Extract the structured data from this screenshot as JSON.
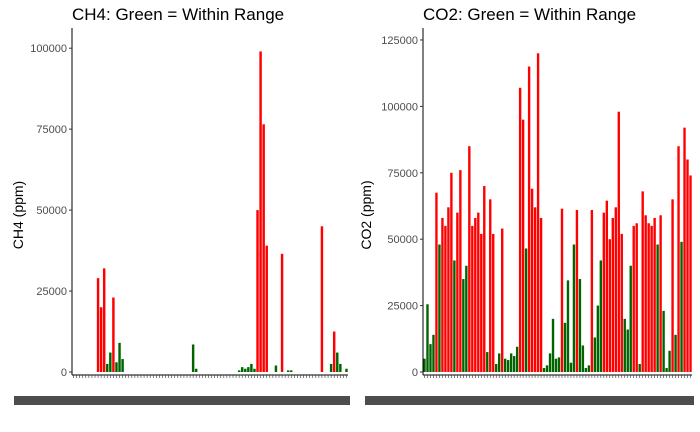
{
  "chart_data": [
    {
      "type": "bar",
      "title": "CH4: Green = Within Range",
      "xlabel": "",
      "ylabel": "CH4 (ppm)",
      "ylim": [
        0,
        105000
      ],
      "yticks": [
        0,
        25000,
        50000,
        75000,
        100000
      ],
      "grid": false,
      "colors": {
        "within_range": "#006400",
        "out_of_range": "#ff0000"
      },
      "categories_count": 90,
      "bars": [
        {
          "index": 8,
          "value": 29000,
          "within_range": false
        },
        {
          "index": 9,
          "value": 20000,
          "within_range": false
        },
        {
          "index": 10,
          "value": 32000,
          "within_range": false
        },
        {
          "index": 11,
          "value": 2500,
          "within_range": true
        },
        {
          "index": 12,
          "value": 6000,
          "within_range": true
        },
        {
          "index": 13,
          "value": 23000,
          "within_range": false
        },
        {
          "index": 14,
          "value": 3000,
          "within_range": true
        },
        {
          "index": 15,
          "value": 9000,
          "within_range": true
        },
        {
          "index": 16,
          "value": 4000,
          "within_range": true
        },
        {
          "index": 39,
          "value": 8500,
          "within_range": true
        },
        {
          "index": 40,
          "value": 1000,
          "within_range": true
        },
        {
          "index": 54,
          "value": 500,
          "within_range": true
        },
        {
          "index": 55,
          "value": 1500,
          "within_range": true
        },
        {
          "index": 56,
          "value": 1000,
          "within_range": true
        },
        {
          "index": 57,
          "value": 1500,
          "within_range": true
        },
        {
          "index": 58,
          "value": 2500,
          "within_range": true
        },
        {
          "index": 59,
          "value": 1000,
          "within_range": true
        },
        {
          "index": 60,
          "value": 50000,
          "within_range": false
        },
        {
          "index": 61,
          "value": 99000,
          "within_range": false
        },
        {
          "index": 62,
          "value": 76500,
          "within_range": false
        },
        {
          "index": 63,
          "value": 39000,
          "within_range": false
        },
        {
          "index": 66,
          "value": 2000,
          "within_range": true
        },
        {
          "index": 68,
          "value": 36500,
          "within_range": false
        },
        {
          "index": 70,
          "value": 500,
          "within_range": true
        },
        {
          "index": 71,
          "value": 500,
          "within_range": true
        },
        {
          "index": 81,
          "value": 45000,
          "within_range": false
        },
        {
          "index": 84,
          "value": 2500,
          "within_range": true
        },
        {
          "index": 85,
          "value": 12500,
          "within_range": false
        },
        {
          "index": 86,
          "value": 6000,
          "within_range": true
        },
        {
          "index": 87,
          "value": 2500,
          "within_range": true
        },
        {
          "index": 89,
          "value": 1000,
          "within_range": true
        }
      ]
    },
    {
      "type": "bar",
      "title": "CO2: Green = Within Range",
      "xlabel": "",
      "ylabel": "CO2 (ppm)",
      "ylim": [
        0,
        128000
      ],
      "yticks": [
        0,
        25000,
        50000,
        75000,
        100000,
        125000
      ],
      "grid": false,
      "colors": {
        "within_range": "#006400",
        "out_of_range": "#ff0000"
      },
      "categories_count": 90,
      "bars": [
        {
          "index": 0,
          "value": 5000,
          "within_range": true
        },
        {
          "index": 1,
          "value": 25500,
          "within_range": true
        },
        {
          "index": 2,
          "value": 10500,
          "within_range": true
        },
        {
          "index": 3,
          "value": 14000,
          "within_range": true
        },
        {
          "index": 4,
          "value": 67500,
          "within_range": false
        },
        {
          "index": 5,
          "value": 48000,
          "within_range": true
        },
        {
          "index": 6,
          "value": 58000,
          "within_range": false
        },
        {
          "index": 7,
          "value": 55000,
          "within_range": false
        },
        {
          "index": 8,
          "value": 62000,
          "within_range": false
        },
        {
          "index": 9,
          "value": 75000,
          "within_range": false
        },
        {
          "index": 10,
          "value": 42000,
          "within_range": true
        },
        {
          "index": 11,
          "value": 60000,
          "within_range": false
        },
        {
          "index": 12,
          "value": 76000,
          "within_range": false
        },
        {
          "index": 13,
          "value": 35000,
          "within_range": true
        },
        {
          "index": 14,
          "value": 40000,
          "within_range": true
        },
        {
          "index": 15,
          "value": 85000,
          "within_range": false
        },
        {
          "index": 16,
          "value": 55000,
          "within_range": false
        },
        {
          "index": 17,
          "value": 58000,
          "within_range": false
        },
        {
          "index": 18,
          "value": 60000,
          "within_range": false
        },
        {
          "index": 19,
          "value": 52000,
          "within_range": false
        },
        {
          "index": 20,
          "value": 70000,
          "within_range": false
        },
        {
          "index": 21,
          "value": 7500,
          "within_range": true
        },
        {
          "index": 22,
          "value": 65000,
          "within_range": false
        },
        {
          "index": 23,
          "value": 52000,
          "within_range": false
        },
        {
          "index": 24,
          "value": 3000,
          "within_range": true
        },
        {
          "index": 25,
          "value": 7000,
          "within_range": true
        },
        {
          "index": 26,
          "value": 54000,
          "within_range": false
        },
        {
          "index": 27,
          "value": 5000,
          "within_range": true
        },
        {
          "index": 28,
          "value": 4500,
          "within_range": true
        },
        {
          "index": 29,
          "value": 7000,
          "within_range": true
        },
        {
          "index": 30,
          "value": 6000,
          "within_range": true
        },
        {
          "index": 31,
          "value": 9500,
          "within_range": true
        },
        {
          "index": 32,
          "value": 107000,
          "within_range": false
        },
        {
          "index": 33,
          "value": 95000,
          "within_range": false
        },
        {
          "index": 34,
          "value": 46500,
          "within_range": true
        },
        {
          "index": 35,
          "value": 115000,
          "within_range": false
        },
        {
          "index": 36,
          "value": 69000,
          "within_range": false
        },
        {
          "index": 37,
          "value": 62000,
          "within_range": false
        },
        {
          "index": 38,
          "value": 120000,
          "within_range": false
        },
        {
          "index": 39,
          "value": 58000,
          "within_range": false
        },
        {
          "index": 40,
          "value": 1500,
          "within_range": true
        },
        {
          "index": 41,
          "value": 2500,
          "within_range": true
        },
        {
          "index": 42,
          "value": 7000,
          "within_range": true
        },
        {
          "index": 43,
          "value": 20000,
          "within_range": true
        },
        {
          "index": 44,
          "value": 5000,
          "within_range": true
        },
        {
          "index": 45,
          "value": 5500,
          "within_range": true
        },
        {
          "index": 46,
          "value": 61500,
          "within_range": false
        },
        {
          "index": 47,
          "value": 18500,
          "within_range": true
        },
        {
          "index": 48,
          "value": 34500,
          "within_range": true
        },
        {
          "index": 49,
          "value": 3500,
          "within_range": true
        },
        {
          "index": 50,
          "value": 48000,
          "within_range": true
        },
        {
          "index": 51,
          "value": 61000,
          "within_range": false
        },
        {
          "index": 52,
          "value": 35000,
          "within_range": true
        },
        {
          "index": 53,
          "value": 10000,
          "within_range": true
        },
        {
          "index": 54,
          "value": 1500,
          "within_range": true
        },
        {
          "index": 55,
          "value": 2500,
          "within_range": true
        },
        {
          "index": 56,
          "value": 61000,
          "within_range": false
        },
        {
          "index": 57,
          "value": 13000,
          "within_range": true
        },
        {
          "index": 58,
          "value": 25000,
          "within_range": true
        },
        {
          "index": 59,
          "value": 42000,
          "within_range": true
        },
        {
          "index": 60,
          "value": 60000,
          "within_range": false
        },
        {
          "index": 61,
          "value": 64500,
          "within_range": false
        },
        {
          "index": 62,
          "value": 50000,
          "within_range": false
        },
        {
          "index": 63,
          "value": 58000,
          "within_range": false
        },
        {
          "index": 64,
          "value": 62000,
          "within_range": false
        },
        {
          "index": 65,
          "value": 98000,
          "within_range": false
        },
        {
          "index": 66,
          "value": 52000,
          "within_range": false
        },
        {
          "index": 67,
          "value": 20000,
          "within_range": true
        },
        {
          "index": 68,
          "value": 16000,
          "within_range": true
        },
        {
          "index": 69,
          "value": 40000,
          "within_range": true
        },
        {
          "index": 70,
          "value": 55000,
          "within_range": false
        },
        {
          "index": 71,
          "value": 56000,
          "within_range": false
        },
        {
          "index": 72,
          "value": 3000,
          "within_range": true
        },
        {
          "index": 73,
          "value": 68000,
          "within_range": false
        },
        {
          "index": 74,
          "value": 59000,
          "within_range": false
        },
        {
          "index": 75,
          "value": 56000,
          "within_range": false
        },
        {
          "index": 76,
          "value": 55000,
          "within_range": false
        },
        {
          "index": 77,
          "value": 58000,
          "within_range": false
        },
        {
          "index": 78,
          "value": 48000,
          "within_range": true
        },
        {
          "index": 79,
          "value": 59000,
          "within_range": false
        },
        {
          "index": 80,
          "value": 23000,
          "within_range": true
        },
        {
          "index": 81,
          "value": 1500,
          "within_range": true
        },
        {
          "index": 82,
          "value": 8000,
          "within_range": true
        },
        {
          "index": 83,
          "value": 65000,
          "within_range": false
        },
        {
          "index": 84,
          "value": 14000,
          "within_range": true
        },
        {
          "index": 85,
          "value": 85000,
          "within_range": false
        },
        {
          "index": 86,
          "value": 49000,
          "within_range": true
        },
        {
          "index": 87,
          "value": 92000,
          "within_range": false
        },
        {
          "index": 88,
          "value": 80000,
          "within_range": false
        },
        {
          "index": 89,
          "value": 74000,
          "within_range": false
        }
      ]
    }
  ]
}
